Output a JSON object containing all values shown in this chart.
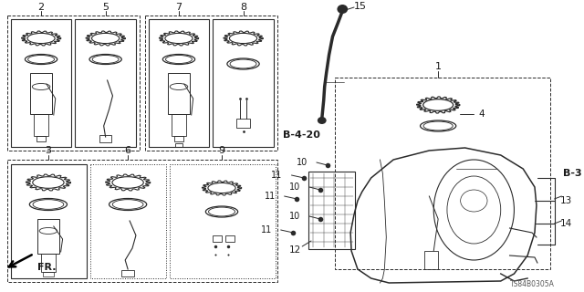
{
  "bg": "#ffffff",
  "lc": "#2a2a2a",
  "part_code": "TS84B0305A",
  "fig_w": 6.4,
  "fig_h": 3.2,
  "dpi": 100
}
